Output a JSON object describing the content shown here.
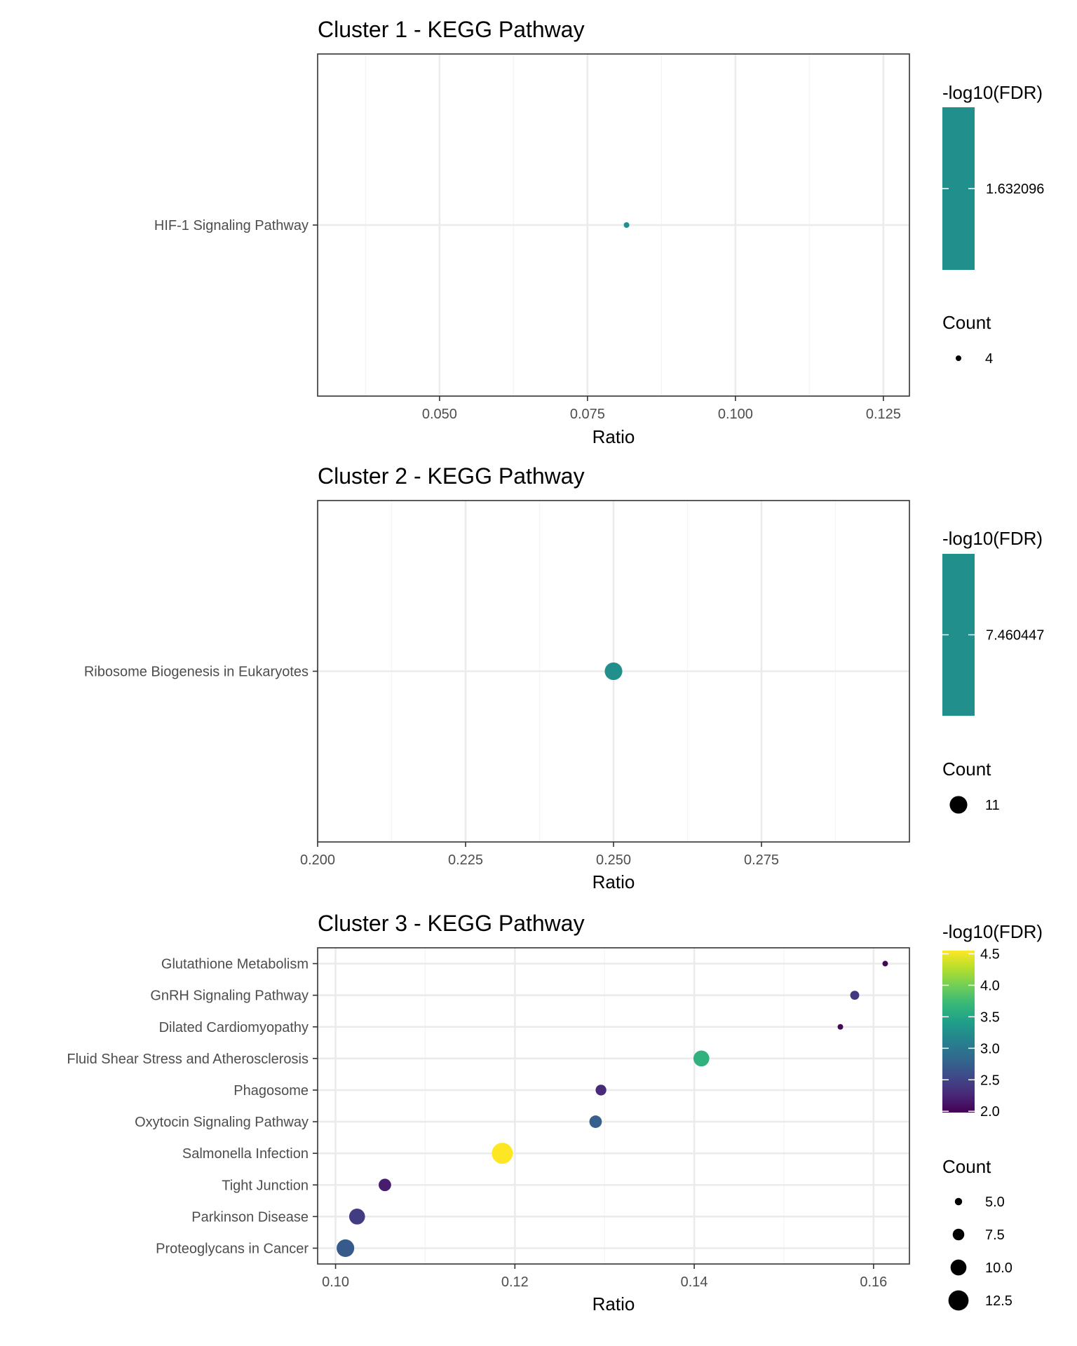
{
  "chart_data": [
    {
      "type": "scatter",
      "title": "Cluster 1 - KEGG Pathway",
      "xlabel": "Ratio",
      "xlim": [
        0.0294,
        0.1294
      ],
      "xticks": [
        "0.050",
        "0.075",
        "0.100",
        "0.125"
      ],
      "xtick_values": [
        0.05,
        0.075,
        0.1,
        0.125
      ],
      "categories": [
        "HIF-1 Signaling Pathway"
      ],
      "points": [
        {
          "y": "HIF-1 Signaling Pathway",
          "x": 0.0816,
          "count": 4,
          "neg_log10_fdr": 1.632096
        }
      ],
      "grid": true,
      "legend": {
        "position": "right",
        "color_title": "-log10(FDR)",
        "color_ticks": [
          "1.632096"
        ],
        "color_range": [
          1.632096,
          1.632096
        ],
        "size_title": "Count",
        "size_labels": [
          "4"
        ],
        "size_values": [
          4
        ]
      }
    },
    {
      "type": "scatter",
      "title": "Cluster 2 - KEGG Pathway",
      "xlabel": "Ratio",
      "xlim": [
        0.2,
        0.3
      ],
      "xticks": [
        "0.200",
        "0.225",
        "0.250",
        "0.275"
      ],
      "xtick_values": [
        0.2,
        0.225,
        0.25,
        0.275
      ],
      "categories": [
        "Ribosome Biogenesis in Eukaryotes"
      ],
      "points": [
        {
          "y": "Ribosome Biogenesis in Eukaryotes",
          "x": 0.25,
          "count": 11,
          "neg_log10_fdr": 7.460447
        }
      ],
      "grid": true,
      "legend": {
        "position": "right",
        "color_title": "-log10(FDR)",
        "color_ticks": [
          "7.460447"
        ],
        "color_range": [
          7.460447,
          7.460447
        ],
        "size_title": "Count",
        "size_labels": [
          "11"
        ],
        "size_values": [
          11
        ]
      }
    },
    {
      "type": "scatter",
      "title": "Cluster 3 - KEGG Pathway",
      "xlabel": "Ratio",
      "xlim": [
        0.098,
        0.164
      ],
      "xticks": [
        "0.10",
        "0.12",
        "0.14",
        "0.16"
      ],
      "xtick_values": [
        0.1,
        0.12,
        0.14,
        0.16
      ],
      "categories": [
        "Glutathione Metabolism",
        "GnRH Signaling Pathway",
        "Dilated Cardiomyopathy",
        "Fluid Shear Stress and Atherosclerosis",
        "Phagosome",
        "Oxytocin Signaling Pathway",
        "Salmonella Infection",
        "Tight Junction",
        "Parkinson Disease",
        "Proteoglycans in Cancer"
      ],
      "points": [
        {
          "y": "Glutathione Metabolism",
          "x": 0.1613,
          "count": 4,
          "neg_log10_fdr": 2.02
        },
        {
          "y": "GnRH Signaling Pathway",
          "x": 0.1579,
          "count": 6,
          "neg_log10_fdr": 2.4
        },
        {
          "y": "Dilated Cardiomyopathy",
          "x": 0.1563,
          "count": 4,
          "neg_log10_fdr": 2.05
        },
        {
          "y": "Fluid Shear Stress and Atherosclerosis",
          "x": 0.1408,
          "count": 10,
          "neg_log10_fdr": 3.6
        },
        {
          "y": "Phagosome",
          "x": 0.1296,
          "count": 7,
          "neg_log10_fdr": 2.3
        },
        {
          "y": "Oxytocin Signaling Pathway",
          "x": 0.129,
          "count": 8,
          "neg_log10_fdr": 2.75
        },
        {
          "y": "Salmonella Infection",
          "x": 0.1186,
          "count": 13,
          "neg_log10_fdr": 4.55
        },
        {
          "y": "Tight Junction",
          "x": 0.1055,
          "count": 8,
          "neg_log10_fdr": 2.2
        },
        {
          "y": "Parkinson Disease",
          "x": 0.1024,
          "count": 10,
          "neg_log10_fdr": 2.45
        },
        {
          "y": "Proteoglycans in Cancer",
          "x": 0.1011,
          "count": 11,
          "neg_log10_fdr": 2.7
        }
      ],
      "grid": true,
      "legend": {
        "position": "right",
        "color_title": "-log10(FDR)",
        "color_ticks": [
          "2.0",
          "2.5",
          "3.0",
          "3.5",
          "4.0",
          "4.5"
        ],
        "color_tick_values": [
          2.0,
          2.5,
          3.0,
          3.5,
          4.0,
          4.5
        ],
        "color_range": [
          2.0,
          4.5
        ],
        "size_title": "Count",
        "size_labels": [
          "5.0",
          "7.5",
          "10.0",
          "12.5"
        ],
        "size_values": [
          5.0,
          7.5,
          10.0,
          12.5
        ]
      }
    }
  ],
  "colors": {
    "single_point": "#21908C",
    "panel_border": "#333333",
    "grid_major": "#EBEBEB",
    "grid_minor": "#F4F4F4",
    "viridis": [
      "#440154",
      "#482878",
      "#3E4A89",
      "#31688E",
      "#26828E",
      "#1F9E89",
      "#35B779",
      "#6DCD59",
      "#B4DE2C",
      "#FDE725"
    ]
  }
}
